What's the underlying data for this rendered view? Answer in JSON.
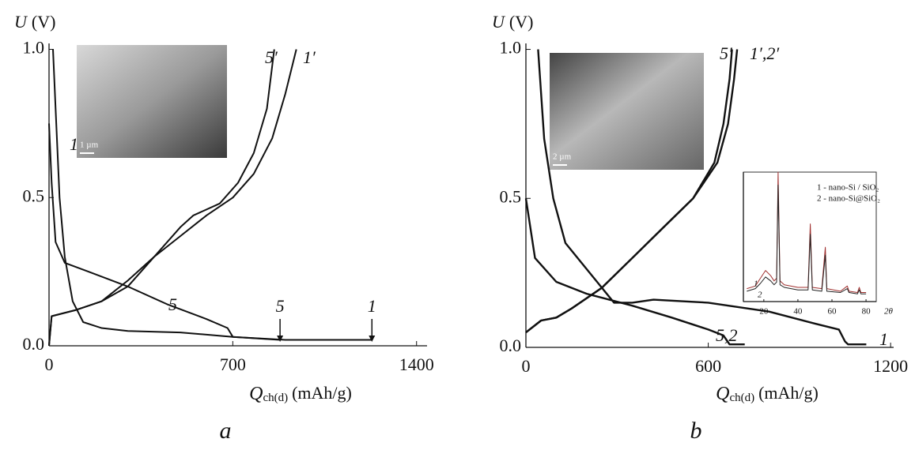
{
  "chart_data": [
    {
      "type": "line",
      "caption": "a",
      "y_label": {
        "symbol": "U",
        "unit": "(V)"
      },
      "x_label": {
        "symbol": "Q",
        "subscript": "ch(d)",
        "unit": "(mAh/g)"
      },
      "xlim": [
        0,
        1440
      ],
      "ylim": [
        0,
        1.02
      ],
      "xticks": [
        0,
        700,
        1400
      ],
      "yticks": [
        {
          "value": 0,
          "label": "0.0"
        },
        {
          "value": 0.5,
          "label": "0.5"
        },
        {
          "value": 1,
          "label": "1.0"
        }
      ],
      "sem_scale_bar": "1 µm",
      "series": [
        {
          "name": "1",
          "color": "#111",
          "x": [
            0,
            10,
            25,
            60,
            150,
            300,
            450,
            600,
            680,
            700,
            900,
            1230
          ],
          "values": [
            0.75,
            0.55,
            0.35,
            0.28,
            0.25,
            0.2,
            0.14,
            0.09,
            0.06,
            0.03,
            0.02,
            0.02
          ]
        },
        {
          "name": "5",
          "color": "#111",
          "x": [
            15,
            25,
            40,
            60,
            90,
            130,
            200,
            300,
            500,
            700,
            880
          ],
          "values": [
            1.0,
            0.8,
            0.5,
            0.3,
            0.15,
            0.08,
            0.06,
            0.05,
            0.045,
            0.03,
            0.02
          ]
        },
        {
          "name": "5′",
          "color": "#111",
          "x": [
            0,
            10,
            100,
            200,
            300,
            400,
            500,
            550,
            650,
            720,
            780,
            830,
            858
          ],
          "values": [
            0,
            0.1,
            0.12,
            0.15,
            0.2,
            0.3,
            0.4,
            0.44,
            0.48,
            0.55,
            0.65,
            0.8,
            1.0
          ]
        },
        {
          "name": "1′",
          "color": "#111",
          "x": [
            0,
            10,
            100,
            200,
            300,
            400,
            500,
            600,
            700,
            780,
            850,
            900,
            942
          ],
          "values": [
            0,
            0.1,
            0.12,
            0.15,
            0.22,
            0.3,
            0.37,
            0.44,
            0.5,
            0.58,
            0.7,
            0.85,
            1.0
          ]
        }
      ],
      "annotations": [
        {
          "text": "5",
          "x": 880
        },
        {
          "text": "1",
          "x": 1230
        }
      ]
    },
    {
      "type": "line",
      "caption": "b",
      "y_label": {
        "symbol": "U",
        "unit": "(V)"
      },
      "x_label": {
        "symbol": "Q",
        "subscript": "ch(d)",
        "unit": "(mAh/g)"
      },
      "xlim": [
        0,
        1210
      ],
      "ylim": [
        0,
        1.02
      ],
      "xticks": [
        0,
        600,
        1200
      ],
      "yticks": [
        {
          "value": 0,
          "label": "0.0"
        },
        {
          "value": 0.5,
          "label": "0.5"
        },
        {
          "value": 1,
          "label": "1.0"
        }
      ],
      "sem_scale_bar": "2 µm",
      "series": [
        {
          "name": "1",
          "color": "#111",
          "x": [
            40,
            60,
            90,
            130,
            210,
            290,
            350,
            420,
            600,
            800,
            950,
            1030,
            1050,
            1060,
            1120
          ],
          "values": [
            1.0,
            0.7,
            0.5,
            0.35,
            0.25,
            0.15,
            0.15,
            0.16,
            0.15,
            0.12,
            0.08,
            0.06,
            0.02,
            0.01,
            0.01
          ]
        },
        {
          "name": "5,2",
          "color": "#111",
          "x": [
            0,
            30,
            100,
            200,
            350,
            480,
            600,
            650,
            670,
            720
          ],
          "values": [
            0.5,
            0.3,
            0.22,
            0.18,
            0.14,
            0.1,
            0.06,
            0.04,
            0.01,
            0.01
          ]
        },
        {
          "name": "5′",
          "color": "#111",
          "x": [
            0,
            50,
            100,
            150,
            250,
            350,
            450,
            550,
            620,
            650,
            670,
            678
          ],
          "values": [
            0.05,
            0.09,
            0.1,
            0.13,
            0.2,
            0.3,
            0.4,
            0.5,
            0.62,
            0.75,
            0.9,
            1.0
          ]
        },
        {
          "name": "1′,2′",
          "color": "#111",
          "x": [
            0,
            50,
            100,
            150,
            250,
            350,
            450,
            550,
            630,
            665,
            685,
            695
          ],
          "values": [
            0.05,
            0.09,
            0.1,
            0.13,
            0.2,
            0.3,
            0.4,
            0.5,
            0.62,
            0.75,
            0.9,
            1.0
          ]
        }
      ]
    },
    {
      "type": "line",
      "x_label": "2θ",
      "xlim": [
        8,
        86
      ],
      "ylim": [
        0,
        100
      ],
      "xticks": [
        20,
        40,
        60,
        80
      ],
      "legend_entries": [
        "1 - nano-Si / SiO₂",
        "2 - nano-Si@SiO₂"
      ],
      "x": [
        10,
        15,
        18,
        21,
        24,
        26,
        27.5,
        28.4,
        29.5,
        32,
        40,
        46,
        47.3,
        48.5,
        54,
        56.1,
        57,
        65,
        69,
        70,
        75,
        76,
        77,
        80
      ],
      "series": [
        {
          "name": "1",
          "color": "#a0302f",
          "values": [
            10,
            12,
            18,
            24,
            20,
            16,
            18,
            100,
            16,
            13,
            11,
            11,
            60,
            11,
            10,
            42,
            10,
            8,
            12,
            8,
            7,
            11,
            7,
            7
          ]
        },
        {
          "name": "2",
          "color": "#222",
          "values": [
            8,
            10,
            14,
            19,
            16,
            13,
            15,
            90,
            13,
            11,
            9,
            9,
            52,
            9,
            8,
            36,
            8,
            7,
            10,
            7,
            6,
            9,
            6,
            6
          ]
        }
      ]
    }
  ]
}
